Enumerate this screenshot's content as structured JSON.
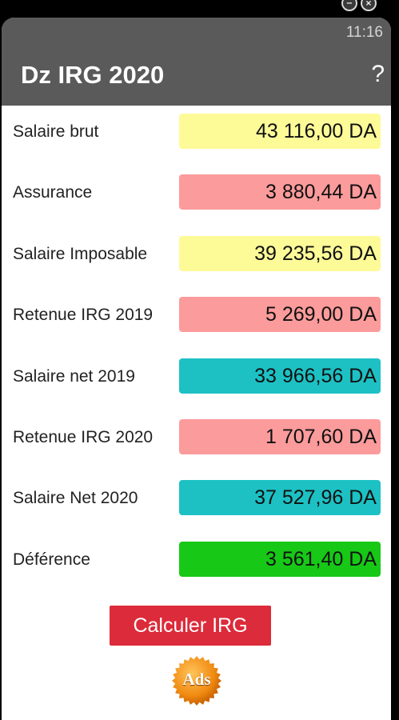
{
  "window": {
    "minimize_icon": "minimize-icon",
    "close_icon": "close-icon",
    "minimize_glyph": "−",
    "close_glyph": "×"
  },
  "status_bar": {
    "time": "11:16"
  },
  "app_bar": {
    "title": "Dz IRG 2020",
    "help": "?"
  },
  "rows": [
    {
      "label": "Salaire brut",
      "value": "43 116,00 DA",
      "color": "#fdfa98"
    },
    {
      "label": "Assurance",
      "value": "3 880,44 DA",
      "color": "#fc9b9b"
    },
    {
      "label": "Salaire Imposable",
      "value": "39 235,56 DA",
      "color": "#fdfa98"
    },
    {
      "label": "Retenue IRG 2019",
      "value": "5 269,00 DA",
      "color": "#fc9b9b"
    },
    {
      "label": "Salaire net 2019",
      "value": "33 966,56 DA",
      "color": "#1dc1c4"
    },
    {
      "label": "Retenue IRG 2020",
      "value": "1 707,60 DA",
      "color": "#fc9b9b"
    },
    {
      "label": "Salaire Net 2020",
      "value": "37 527,96 DA",
      "color": "#1dc1c4"
    },
    {
      "label": "Déférence",
      "value": "3 561,40 DA",
      "color": "#17c817"
    }
  ],
  "calculate_button": {
    "label": "Calculer IRG",
    "color": "#dc2b3a"
  },
  "ads": {
    "label": "Ads",
    "color": "#f39019"
  }
}
